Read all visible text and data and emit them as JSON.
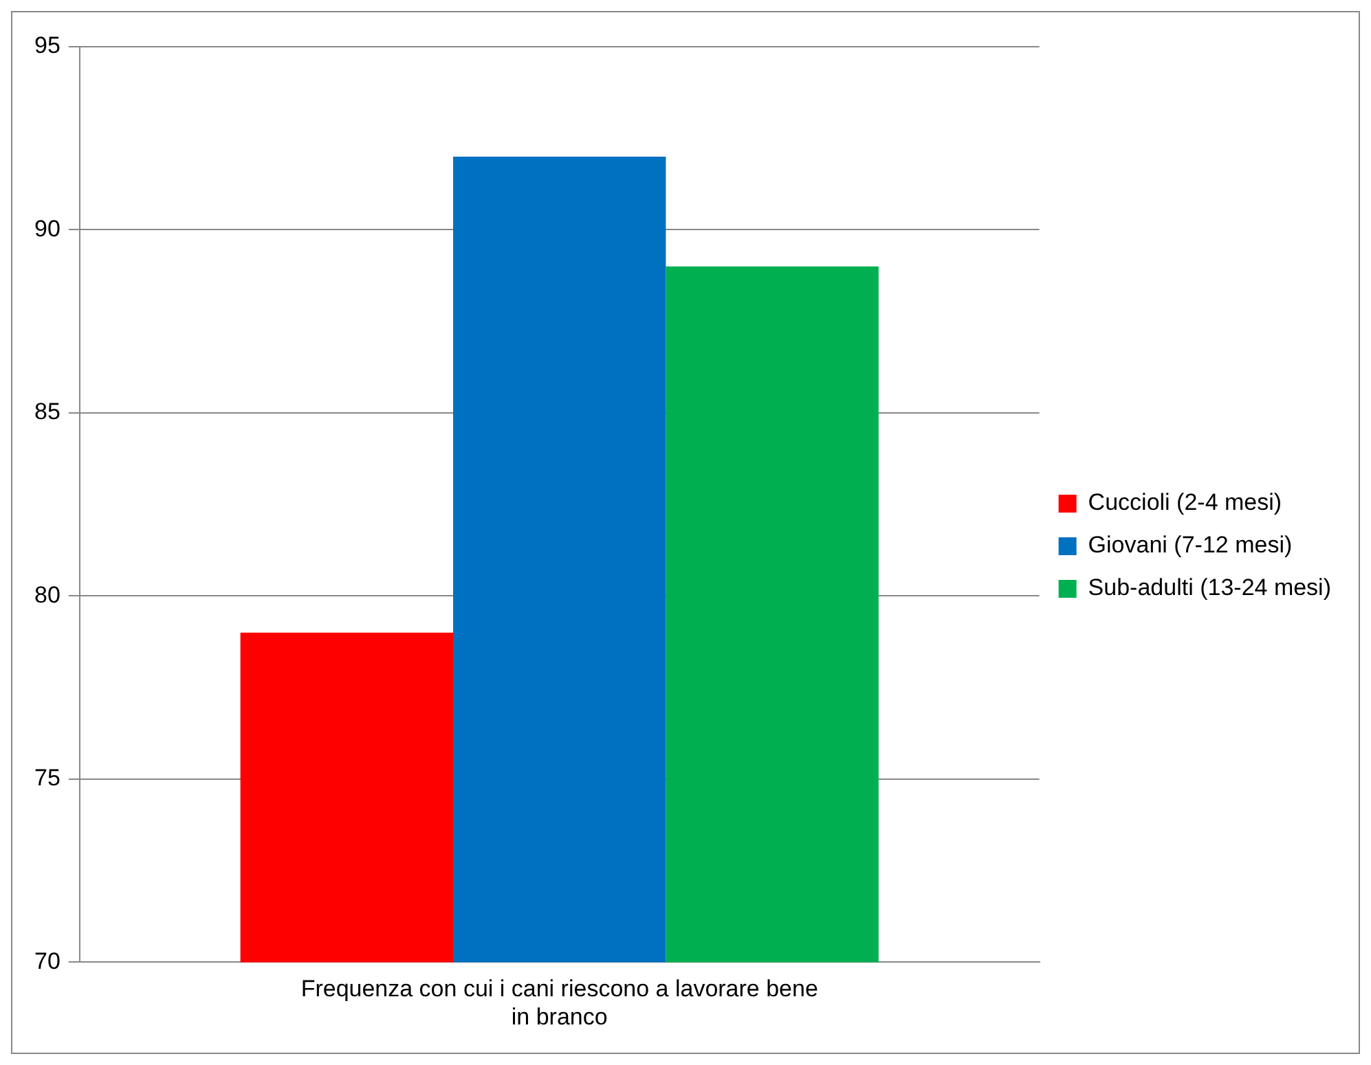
{
  "chart_data": {
    "type": "bar",
    "categories": [
      "Frequenza con cui i cani riescono a lavorare bene in branco"
    ],
    "series": [
      {
        "name": "Cuccioli (2-4 mesi)",
        "color": "#ff0000",
        "values": [
          79
        ]
      },
      {
        "name": "Giovani (7-12 mesi)",
        "color": "#0070c0",
        "values": [
          92
        ]
      },
      {
        "name": "Sub-adulti (13-24 mesi)",
        "color": "#00b050",
        "values": [
          89
        ]
      }
    ],
    "ylim": [
      70,
      95
    ],
    "yticks": [
      70,
      75,
      80,
      85,
      90,
      95
    ],
    "grid": "y",
    "legend": "right"
  }
}
